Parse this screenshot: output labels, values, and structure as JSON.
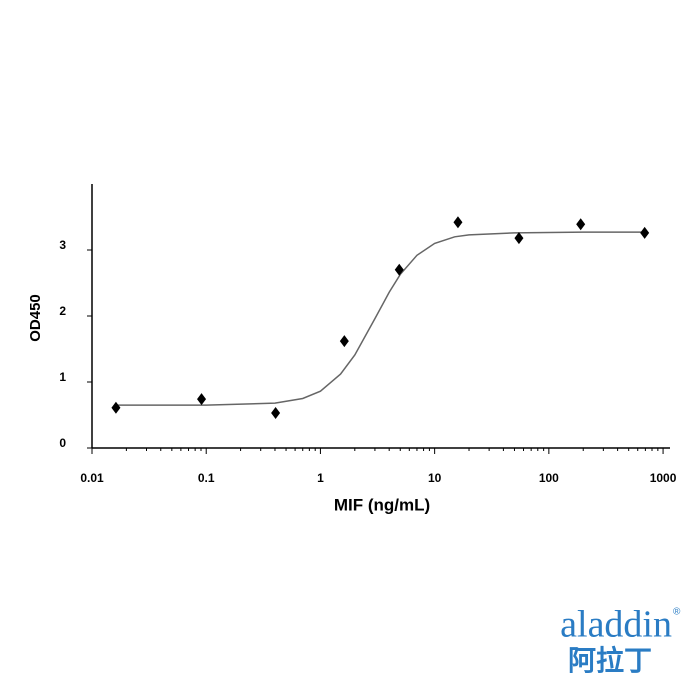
{
  "chart_data": {
    "type": "scatter",
    "x_label": "MIF (ng/mL)",
    "y_label": "OD450",
    "x": [
      0.0162,
      0.091,
      0.405,
      1.62,
      4.9,
      16,
      54.7,
      190,
      690
    ],
    "values": [
      0.61,
      0.74,
      0.53,
      1.62,
      2.7,
      3.42,
      3.18,
      3.39,
      3.26
    ],
    "color": "#000000",
    "curve": {
      "color": "#666666",
      "x": [
        0.016,
        0.1,
        0.4,
        0.7,
        1,
        1.5,
        2,
        3,
        4,
        5,
        7,
        10,
        15,
        20,
        50,
        200,
        700
      ],
      "values": [
        0.65,
        0.65,
        0.68,
        0.75,
        0.86,
        1.12,
        1.41,
        1.96,
        2.36,
        2.63,
        2.92,
        3.1,
        3.2,
        3.23,
        3.26,
        3.27,
        3.27
      ]
    },
    "xscale": "log",
    "xlim": [
      0.01,
      1150
    ],
    "xticks": [
      0.01,
      0.1,
      1,
      10,
      100,
      1000
    ],
    "ylim": [
      0,
      4
    ],
    "yticks": [
      0,
      1,
      2,
      3
    ],
    "grid": false
  },
  "logo": {
    "text": "aladdin",
    "mark": "®",
    "subtext": "阿拉丁"
  }
}
